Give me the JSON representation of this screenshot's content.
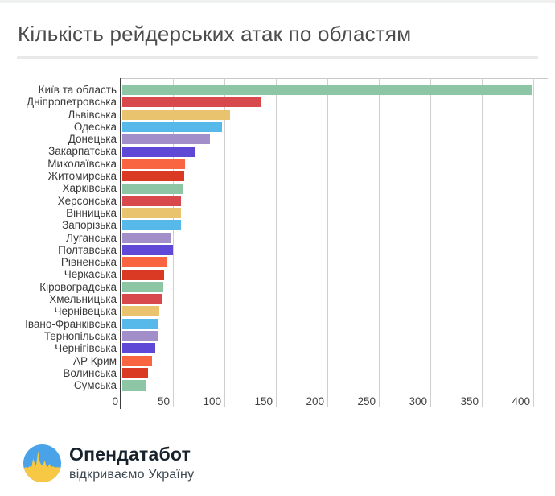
{
  "title": "Кількість рейдерських атак по областям",
  "footer": {
    "brand": "Опендатабот",
    "tagline": "відкриваємо Україну"
  },
  "colors": {
    "title_text": "#4c4c4c",
    "axis_line": "#3d3d3d",
    "gridline": "#cfcfcf",
    "logo_blue": "#4aa3e8",
    "logo_yellow": "#f7c843"
  },
  "chart_data": {
    "type": "bar",
    "orientation": "horizontal",
    "title": "Кількість рейдерських атак по областям",
    "xlabel": "",
    "ylabel": "",
    "grid": true,
    "xlim": [
      0,
      412
    ],
    "x_ticks": [
      0,
      50,
      100,
      150,
      200,
      250,
      300,
      350,
      400
    ],
    "categories": [
      "Київ та область",
      "Дніпропетровська",
      "Львівська",
      "Одеська",
      "Донецька",
      "Закарпатська",
      "Миколаївська",
      "Житомирська",
      "Харківська",
      "Херсонська",
      "Вінницька",
      "Запорізька",
      "Луганська",
      "Полтавська",
      "Рівненська",
      "Черкаська",
      "Кіровоградська",
      "Хмельницька",
      "Чернівецька",
      "Івано-Франківська",
      "Тернопільська",
      "Чернігівська",
      "АР Крим",
      "Волинська",
      "Сумська"
    ],
    "values": [
      398,
      135,
      105,
      97,
      85,
      71,
      61,
      60,
      59,
      57,
      57,
      57,
      48,
      49,
      44,
      41,
      40,
      38,
      36,
      34,
      35,
      32,
      29,
      25,
      23
    ],
    "bar_color_cycle": [
      "#8dc6a4",
      "#d8494e",
      "#eac36e",
      "#56b9e9",
      "#a28fc9",
      "#5f48d6",
      "#f86540",
      "#da3a24"
    ],
    "legend": null
  }
}
